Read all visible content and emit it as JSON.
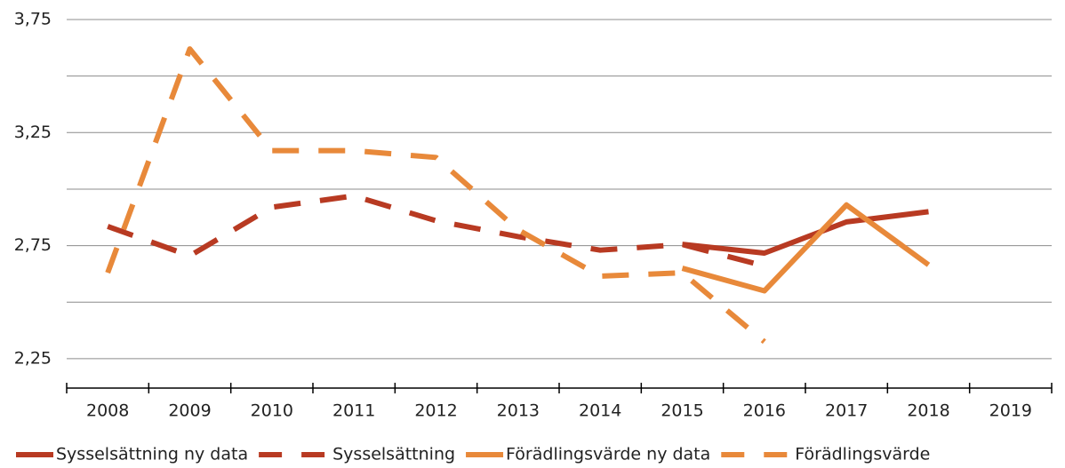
{
  "chart_data": {
    "type": "line",
    "categories": [
      "2008",
      "2009",
      "2010",
      "2011",
      "2012",
      "2013",
      "2014",
      "2015",
      "2016",
      "2017",
      "2018",
      "2019"
    ],
    "series": [
      {
        "name": "Sysselsättning ny data",
        "color": "#b83a22",
        "dashed": false,
        "values": [
          null,
          null,
          null,
          null,
          null,
          null,
          null,
          2.756,
          2.717,
          2.855,
          2.9,
          null
        ]
      },
      {
        "name": "Sysselsättning",
        "color": "#b83a22",
        "dashed": true,
        "values": [
          2.835,
          2.705,
          2.92,
          2.97,
          2.86,
          2.79,
          2.73,
          2.755,
          2.66,
          null,
          null,
          null
        ]
      },
      {
        "name": "Förädlingsvärde ny data",
        "color": "#e8893a",
        "dashed": false,
        "values": [
          null,
          null,
          null,
          null,
          null,
          null,
          null,
          2.65,
          2.55,
          2.93,
          2.665,
          null
        ]
      },
      {
        "name": "Förädlingsvärde",
        "color": "#e8893a",
        "dashed": true,
        "values": [
          2.63,
          3.62,
          3.17,
          3.17,
          3.14,
          2.82,
          2.615,
          2.63,
          2.325,
          null,
          null,
          null
        ]
      }
    ],
    "ylim": [
      2.12,
      3.75
    ],
    "yticks": [
      {
        "value": 2.25,
        "label": "2,25"
      },
      {
        "value": 2.75,
        "label": "2,75"
      },
      {
        "value": 3.25,
        "label": "3,25"
      },
      {
        "value": 3.75,
        "label": "3,75"
      }
    ],
    "yminor": [
      2.5,
      3.0,
      3.5
    ],
    "grid": true,
    "legend": "bottom"
  }
}
